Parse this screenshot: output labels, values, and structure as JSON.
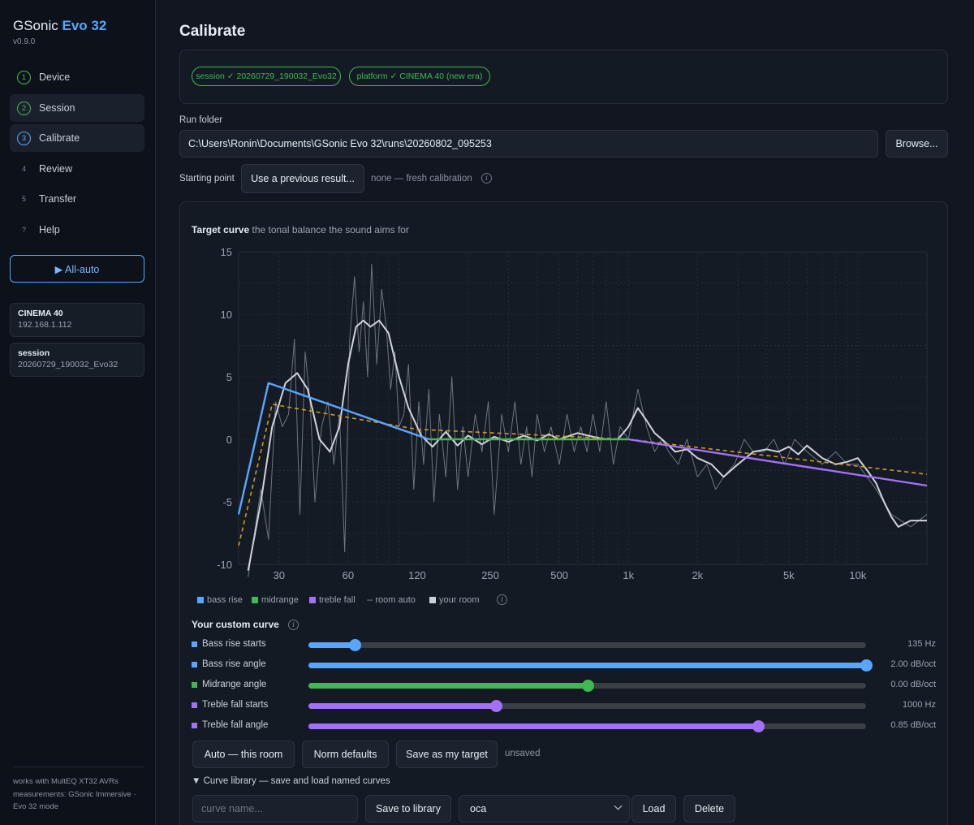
{
  "app": {
    "name": "GSonic",
    "name_accent": "Evo 32",
    "version": "v0.9.0"
  },
  "sidebar": {
    "nav": [
      {
        "num": "1",
        "label": "Device",
        "state": "done"
      },
      {
        "num": "2",
        "label": "Session",
        "state": "done"
      },
      {
        "num": "3",
        "label": "Calibrate",
        "state": "current"
      },
      {
        "num": "4",
        "label": "Review",
        "state": "todo"
      },
      {
        "num": "5",
        "label": "Transfer",
        "state": "todo"
      },
      {
        "num": "?",
        "label": "Help",
        "state": "todo"
      }
    ],
    "all_auto": "▶ All-auto",
    "device_card": {
      "title": "CINEMA 40",
      "subtitle": "192.168.1.112"
    },
    "session_card": {
      "title": "session",
      "subtitle": "20260729_190032_Evo32"
    },
    "footer": [
      "works with MultEQ XT32 AVRs",
      "measurements: GSonic Immersive ·",
      "Evo 32 mode"
    ]
  },
  "main": {
    "title": "Calibrate",
    "pills": [
      "session ✓ 20260729_190032_Evo32",
      "platform ✓ CINEMA 40 (new era)"
    ],
    "run_folder_label": "Run folder",
    "run_folder_value": "C:\\Users\\Ronin\\Documents\\GSonic Evo 32\\runs\\20260802_095253",
    "browse": "Browse...",
    "starting_point_label": "Starting point",
    "use_previous": "Use a previous result...",
    "starting_point_status": "none — fresh calibration",
    "target_curve_title": "Target curve",
    "target_curve_desc": "the tonal balance the sound aims for",
    "legend": [
      {
        "label": "bass rise",
        "color": "#58a6ff",
        "style": "square"
      },
      {
        "label": "midrange",
        "color": "#3fb950",
        "style": "square"
      },
      {
        "label": "treble fall",
        "color": "#a371f7",
        "style": "square"
      },
      {
        "label": "-- room auto",
        "color": "#d29922",
        "style": "none"
      },
      {
        "label": "your room",
        "color": "#c9d1d9",
        "style": "square"
      }
    ],
    "custom_curve_title": "Your custom curve",
    "sliders": [
      {
        "label": "Bass rise starts",
        "value": "135 Hz",
        "color": "#58a6ff",
        "fraction": 0.083
      },
      {
        "label": "Bass rise angle",
        "value": "2.00 dB/oct",
        "color": "#58a6ff",
        "fraction": 1.0
      },
      {
        "label": "Midrange angle",
        "value": "0.00 dB/oct",
        "color": "#3fb950",
        "fraction": 0.5
      },
      {
        "label": "Treble fall starts",
        "value": "1000 Hz",
        "color": "#a371f7",
        "fraction": 0.336
      },
      {
        "label": "Treble fall angle",
        "value": "0.85 dB/oct",
        "color": "#a371f7",
        "fraction": 0.806
      }
    ],
    "auto_button": "Auto — this room",
    "norm_button": "Norm defaults",
    "save_target_button": "Save as my target",
    "save_status": "unsaved",
    "library_toggle": "▼ Curve library — save and load named curves",
    "curve_name_placeholder": "curve name...",
    "save_library_button": "Save to library",
    "library_selected": "oca",
    "load_button": "Load",
    "delete_button": "Delete"
  },
  "chart_data": {
    "type": "line",
    "title": "Target curve",
    "xlabel": "",
    "ylabel": "",
    "x_scale": "log",
    "xlim": [
      20,
      20000
    ],
    "ylim": [
      -10,
      15
    ],
    "x_ticks": [
      30,
      60,
      120,
      250,
      500,
      1000,
      2000,
      5000,
      10000
    ],
    "x_tick_labels": [
      "30",
      "60",
      "120",
      "250",
      "500",
      "1k",
      "2k",
      "5k",
      "10k"
    ],
    "y_ticks": [
      -10,
      -5,
      0,
      5,
      10,
      15
    ],
    "y_tick_labels": [
      "-10",
      "-5",
      "0",
      "5",
      "10",
      "15"
    ],
    "grid": true,
    "series": [
      {
        "name": "bass rise",
        "color": "#58a6ff",
        "x": [
          20,
          27,
          135
        ],
        "y": [
          -6.0,
          4.5,
          0.0
        ]
      },
      {
        "name": "midrange",
        "color": "#3fb950",
        "x": [
          135,
          1000
        ],
        "y": [
          0.0,
          0.0
        ]
      },
      {
        "name": "treble fall",
        "color": "#a371f7",
        "x": [
          1000,
          20000
        ],
        "y": [
          0.0,
          -3.7
        ]
      },
      {
        "name": "room auto",
        "color": "#d29922",
        "dashed": true,
        "x": [
          20,
          28,
          120,
          1000,
          20000
        ],
        "y": [
          -8.5,
          2.8,
          0.8,
          0.0,
          -2.8
        ]
      },
      {
        "name": "your room",
        "color": "#d0d4da",
        "x": [
          22,
          25,
          28,
          32,
          36,
          40,
          45,
          50,
          55,
          60,
          65,
          70,
          75,
          82,
          90,
          100,
          110,
          125,
          140,
          160,
          180,
          200,
          230,
          260,
          300,
          350,
          400,
          450,
          500,
          600,
          700,
          800,
          900,
          1000,
          1100,
          1200,
          1300,
          1400,
          1500,
          1600,
          1800,
          2000,
          2300,
          2600,
          3000,
          3500,
          4000,
          4500,
          5000,
          5500,
          6000,
          7000,
          8000,
          9000,
          10000,
          11000,
          12000,
          13000,
          14000,
          15000,
          17000,
          20000
        ],
        "y": [
          -10.5,
          -5.0,
          1.0,
          4.5,
          5.3,
          4.0,
          0.0,
          -1.0,
          1.0,
          6.0,
          9.0,
          9.5,
          9.0,
          9.5,
          8.5,
          5.0,
          2.5,
          0.3,
          -0.6,
          0.6,
          -0.5,
          0.3,
          -0.4,
          0.2,
          -0.2,
          0.3,
          -0.1,
          0.4,
          0.0,
          0.5,
          0.2,
          0.0,
          0.0,
          1.0,
          2.5,
          1.5,
          0.5,
          0.0,
          -0.5,
          -1.0,
          -0.8,
          -1.5,
          -2.0,
          -3.0,
          -2.0,
          -1.0,
          -0.8,
          -1.0,
          -0.6,
          -1.2,
          -0.5,
          -1.5,
          -2.0,
          -1.8,
          -1.5,
          -2.5,
          -3.5,
          -5.0,
          -6.2,
          -7.0,
          -6.5,
          -6.5
        ]
      },
      {
        "name": "raw measurement",
        "color": "#7d8590",
        "x": [
          22,
          25,
          27,
          29,
          31,
          33,
          35,
          37,
          39,
          41,
          43,
          46,
          49,
          52,
          55,
          58,
          61,
          64,
          67,
          70,
          73,
          76,
          80,
          84,
          88,
          92,
          96,
          100,
          105,
          110,
          116,
          122,
          128,
          135,
          142,
          150,
          160,
          170,
          180,
          190,
          200,
          215,
          230,
          245,
          260,
          280,
          300,
          320,
          340,
          360,
          380,
          400,
          430,
          460,
          500,
          540,
          580,
          620,
          660,
          700,
          750,
          800,
          860,
          920,
          1000,
          1100,
          1200,
          1300,
          1400,
          1500,
          1650,
          1800,
          2000,
          2200,
          2400,
          2600,
          2900,
          3200,
          3500,
          3900,
          4300,
          4800,
          5300,
          6000,
          7000,
          8000,
          9000,
          10000,
          12000,
          14000,
          17000,
          20000
        ],
        "y": [
          -11,
          -4,
          -8,
          3,
          1,
          2,
          8,
          -6,
          7,
          3,
          -5,
          1,
          3,
          -2,
          2,
          -9,
          8,
          13,
          7,
          11,
          5,
          14,
          6,
          12,
          9,
          4,
          7,
          1,
          2,
          6,
          -4,
          3,
          -2,
          4,
          -5,
          2,
          -3,
          5,
          -4,
          1,
          -3,
          2,
          -1,
          3,
          -6,
          2,
          -1,
          3,
          -2,
          1,
          -3,
          2,
          -1,
          1,
          -2,
          2,
          -1,
          1,
          -1,
          2,
          -1,
          3,
          -2,
          1,
          0,
          4,
          1,
          -1,
          0,
          -1,
          -2,
          0,
          -3,
          -2,
          -4,
          -3,
          -2,
          0,
          -1,
          -1,
          0,
          -2,
          0,
          -1,
          -2,
          -1,
          -2,
          -2,
          -4,
          -6,
          -7,
          -6
        ]
      }
    ]
  }
}
